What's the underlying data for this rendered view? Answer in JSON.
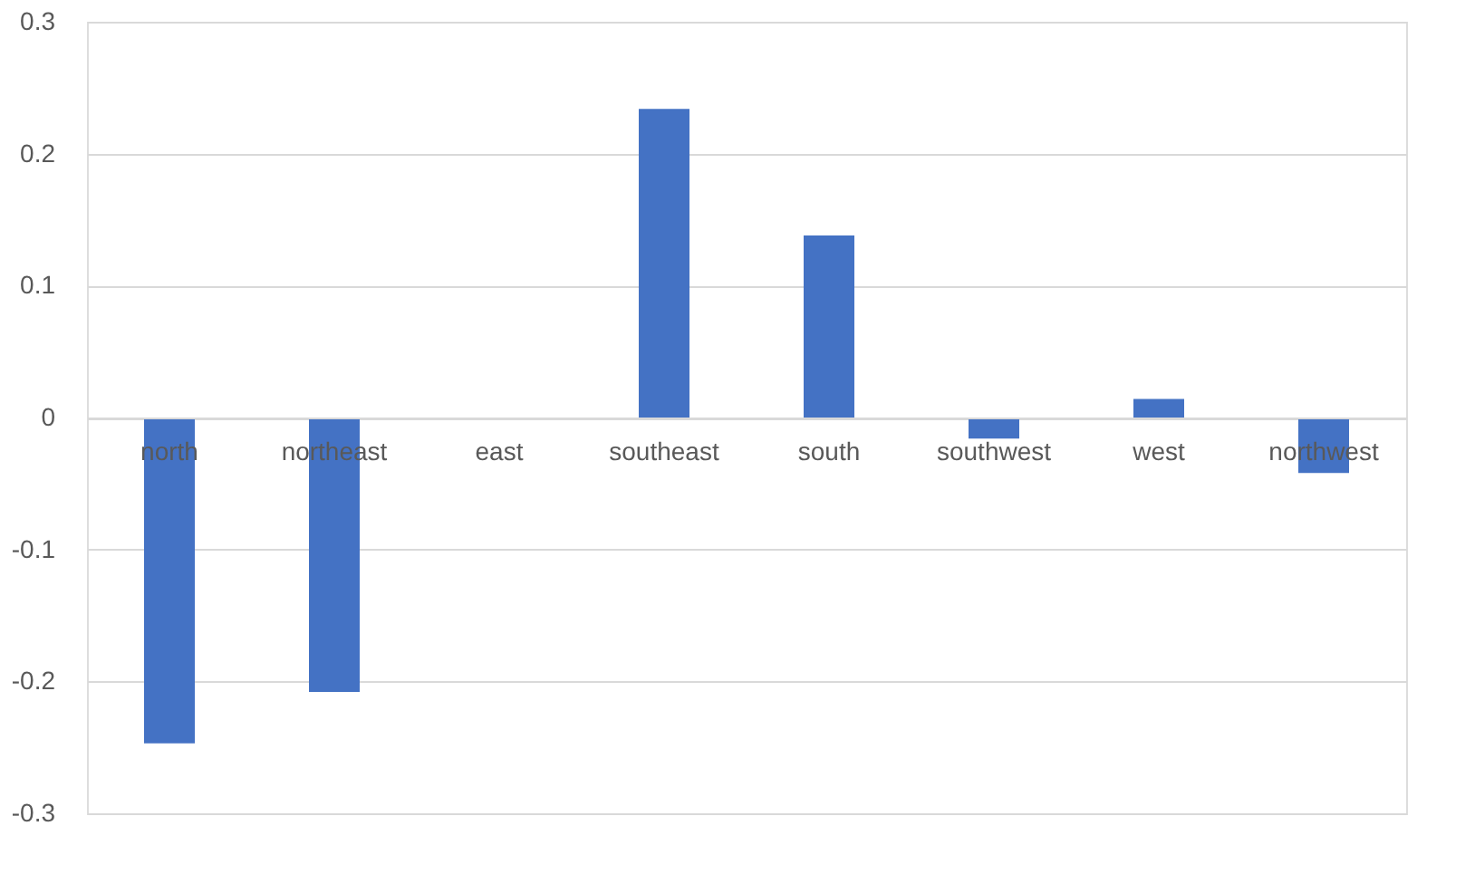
{
  "chart_data": {
    "type": "bar",
    "categories": [
      "north",
      "northeast",
      "east",
      "southeast",
      "south",
      "southwest",
      "west",
      "northwest"
    ],
    "values": [
      -0.247,
      -0.208,
      0,
      0.234,
      0.138,
      -0.016,
      0.014,
      -0.042
    ],
    "color": "#4472c4",
    "ylim": [
      -0.3,
      0.3
    ],
    "yticks": [
      -0.3,
      -0.2,
      -0.1,
      0,
      0.1,
      0.2,
      0.3
    ],
    "grid": "y"
  }
}
